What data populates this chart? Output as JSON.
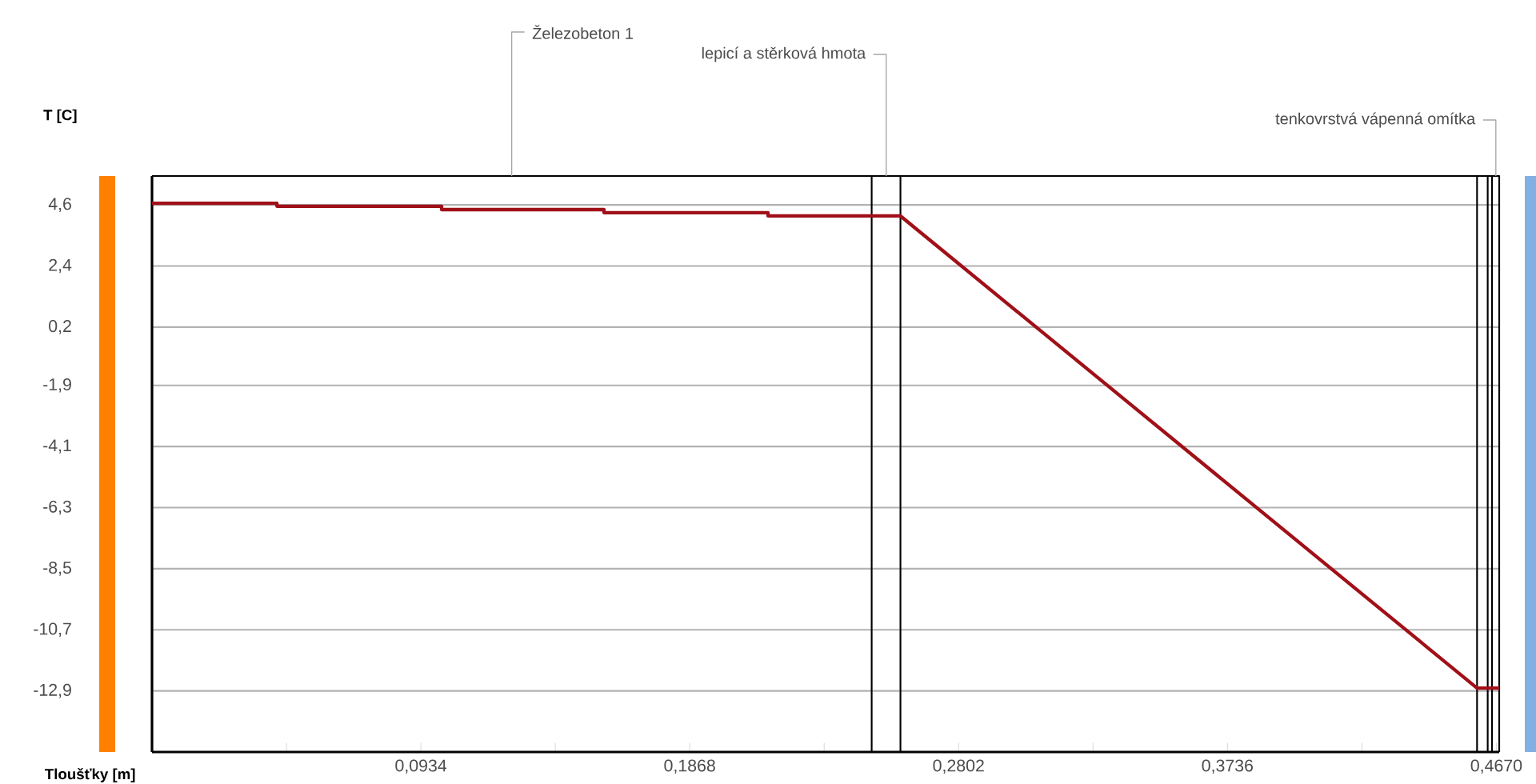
{
  "chart_data": {
    "type": "line",
    "xlabel": "Tloušťky [m]",
    "ylabel": "T [C]",
    "xlim": [
      0,
      0.468
    ],
    "ylim": [
      -15.1,
      5.64
    ],
    "xticks": [
      {
        "value": 0.0467,
        "label": null
      },
      {
        "value": 0.0934,
        "label": "0,0934"
      },
      {
        "value": 0.1401,
        "label": null
      },
      {
        "value": 0.1868,
        "label": "0,1868"
      },
      {
        "value": 0.2335,
        "label": null
      },
      {
        "value": 0.2802,
        "label": "0,2802"
      },
      {
        "value": 0.3269,
        "label": null
      },
      {
        "value": 0.3736,
        "label": "0,3736"
      },
      {
        "value": 0.4203,
        "label": null
      },
      {
        "value": 0.467,
        "label": "0,4670"
      }
    ],
    "yticks": [
      {
        "value": 4.6,
        "label": "4,6"
      },
      {
        "value": 2.4,
        "label": "2,4"
      },
      {
        "value": 0.2,
        "label": "0,2"
      },
      {
        "value": -1.9,
        "label": "-1,9"
      },
      {
        "value": -4.1,
        "label": "-4,1"
      },
      {
        "value": -6.3,
        "label": "-6,3"
      },
      {
        "value": -8.5,
        "label": "-8,5"
      },
      {
        "value": -10.7,
        "label": "-10,7"
      },
      {
        "value": -12.9,
        "label": "-12,9"
      }
    ],
    "grid": "y",
    "marker": "none",
    "line_style": "solid",
    "series": [
      {
        "color": "#a01018",
        "x": [
          0,
          0.0434,
          0.0434,
          0.1006,
          0.1006,
          0.157,
          0.157,
          0.214,
          0.214,
          0.25,
          0.26,
          0.4603,
          0.468
        ],
        "values": [
          4.66,
          4.66,
          4.55,
          4.55,
          4.43,
          4.43,
          4.32,
          4.32,
          4.2,
          4.2,
          4.2,
          -12.8,
          -12.8
        ]
      }
    ],
    "ref_lines": [
      {
        "axis": "x",
        "value": 0.25,
        "color": "#000000"
      },
      {
        "axis": "x",
        "value": 0.26,
        "color": "#000000"
      },
      {
        "axis": "x",
        "value": 0.4603,
        "color": "#000000"
      },
      {
        "axis": "x",
        "value": 0.464,
        "color": "#000000"
      },
      {
        "axis": "x",
        "value": 0.4655,
        "color": "#000000"
      }
    ],
    "annotations": [
      "Železobeton 1",
      "lepicí a stěrková hmota",
      "tenkovrstvá vápenná omítka"
    ]
  }
}
